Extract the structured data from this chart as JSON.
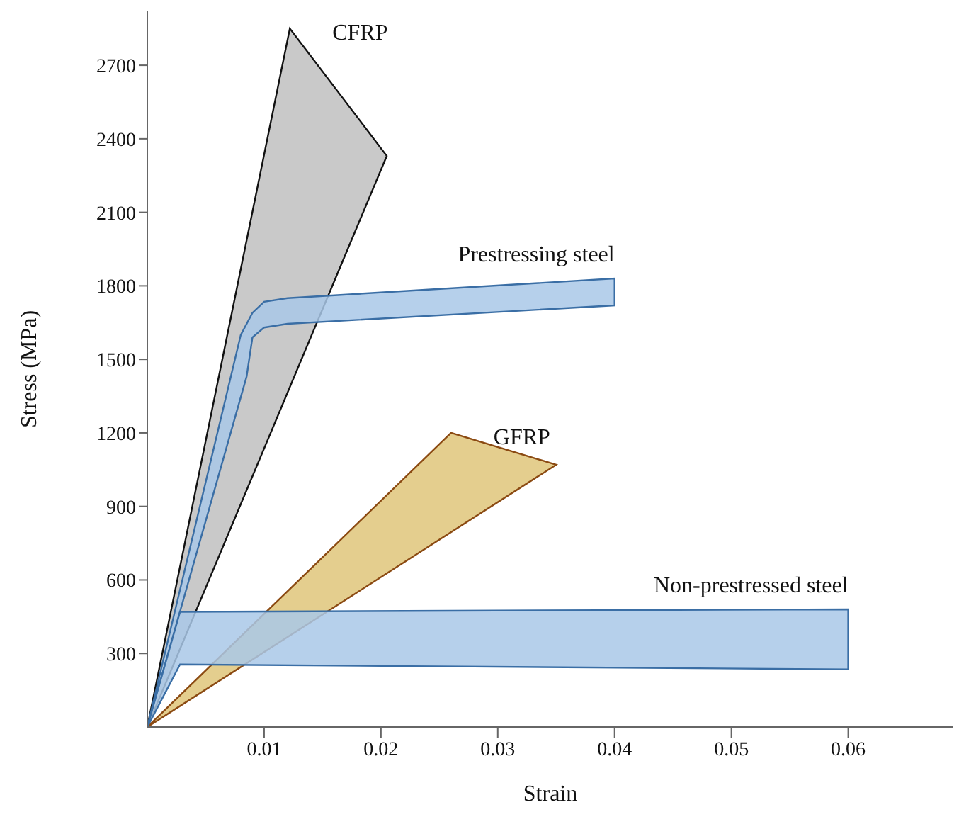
{
  "chart_data": {
    "type": "area",
    "xlabel": "Strain",
    "ylabel": "Stress (MPa)",
    "xlim": [
      0,
      0.069
    ],
    "xticks": [
      0.01,
      0.02,
      0.03,
      0.04,
      0.05,
      0.06
    ],
    "ylim": [
      0,
      2920
    ],
    "yticks": [
      300,
      600,
      900,
      1200,
      1500,
      1800,
      2100,
      2400,
      2700
    ],
    "grid": false,
    "legend": false,
    "series": [
      {
        "name": "CFRP",
        "color": "#c0c0c0",
        "x": [
          0,
          0.0122,
          0.0205,
          0
        ],
        "values": [
          0,
          2850,
          2330,
          0
        ]
      },
      {
        "name": "Prestressing steel",
        "color": "#a9c8e8",
        "x": [
          0,
          0.008,
          0.009,
          0.01,
          0.012,
          0.04,
          0.04,
          0.012,
          0.01,
          0.009,
          0.0085,
          0
        ],
        "values": [
          0,
          1600,
          1690,
          1735,
          1750,
          1830,
          1720,
          1645,
          1630,
          1590,
          1430,
          0
        ]
      },
      {
        "name": "GFRP",
        "color": "#dfc57a",
        "x": [
          0,
          0.026,
          0.035,
          0
        ],
        "values": [
          0,
          1200,
          1070,
          0
        ]
      },
      {
        "name": "Non-prestressed steel",
        "color": "#a9c8e8",
        "x": [
          0,
          0.0028,
          0.06,
          0.06,
          0.0028,
          0
        ],
        "values": [
          0,
          470,
          480,
          235,
          255,
          0
        ]
      }
    ]
  }
}
